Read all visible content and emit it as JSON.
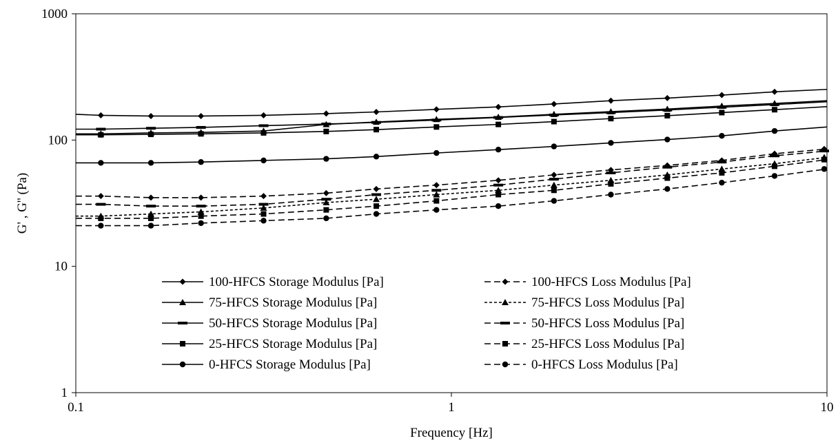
{
  "chart_data": {
    "type": "line",
    "title": "",
    "xlabel": "Frequency [Hz]",
    "ylabel": "G' , G'' (Pa)",
    "xscale": "log",
    "yscale": "log",
    "xlim": [
      0.1,
      10
    ],
    "ylim": [
      1,
      1000
    ],
    "xticks": [
      {
        "value": 0.1,
        "label": "0.1"
      },
      {
        "value": 1,
        "label": "1"
      },
      {
        "value": 10,
        "label": "10"
      }
    ],
    "yticks": [
      {
        "value": 1,
        "label": "1"
      },
      {
        "value": 10,
        "label": "10"
      },
      {
        "value": 100,
        "label": "100"
      },
      {
        "value": 1000,
        "label": "1000"
      }
    ],
    "grid": false,
    "legend_position": "inside-bottom-center",
    "x": [
      0.1,
      0.1166,
      0.1585,
      0.2154,
      0.3162,
      0.4642,
      0.631,
      0.9125,
      1.3335,
      1.8755,
      2.6585,
      3.7575,
      5.2475,
      7.2525,
      10
    ],
    "series": [
      {
        "name": "100-HFCS Storage Modulus [Pa]",
        "marker": "diamond",
        "dash": "solid",
        "values": [
          160,
          157,
          155,
          155,
          157,
          162,
          167,
          175,
          183,
          193,
          205,
          215,
          227,
          241,
          252
        ]
      },
      {
        "name": "75-HFCS Storage Modulus [Pa]",
        "marker": "triangle",
        "dash": "solid",
        "values": [
          112,
          112,
          114,
          115,
          118,
          133,
          139,
          146,
          152,
          160,
          168,
          176,
          186,
          195,
          205
        ]
      },
      {
        "name": "50-HFCS Storage Modulus [Pa]",
        "marker": "dash",
        "dash": "solid",
        "values": [
          122,
          122,
          124,
          126,
          130,
          134,
          138,
          144,
          151,
          158,
          165,
          173,
          182,
          191,
          201
        ]
      },
      {
        "name": "25-HFCS Storage Modulus [Pa]",
        "marker": "square",
        "dash": "solid",
        "values": [
          110,
          110,
          111,
          112,
          114,
          117,
          121,
          127,
          133,
          140,
          148,
          156,
          165,
          174,
          184
        ]
      },
      {
        "name": "0-HFCS Storage Modulus [Pa]",
        "marker": "circle",
        "dash": "solid",
        "values": [
          66,
          66,
          66,
          67,
          69,
          71,
          74,
          79,
          84,
          89,
          95,
          101,
          108,
          118,
          127
        ]
      },
      {
        "name": "100-HFCS Loss Modulus [Pa]",
        "marker": "diamond",
        "dash": "long-dash",
        "values": [
          36,
          36,
          35,
          35,
          36,
          38,
          41,
          44,
          48,
          53,
          58,
          63,
          69,
          78,
          85
        ]
      },
      {
        "name": "75-HFCS Loss Modulus [Pa]",
        "marker": "triangle",
        "dash": "short-dash",
        "values": [
          25,
          25,
          26,
          27,
          29,
          32,
          34,
          37,
          40,
          44,
          48,
          53,
          59,
          65,
          73
        ]
      },
      {
        "name": "50-HFCS Loss Modulus [Pa]",
        "marker": "dash",
        "dash": "long-dash",
        "values": [
          31,
          31,
          30,
          30,
          31,
          34,
          37,
          40,
          44,
          49,
          55,
          61,
          67,
          75,
          82
        ]
      },
      {
        "name": "25-HFCS Loss Modulus [Pa]",
        "marker": "square",
        "dash": "long-dash",
        "values": [
          24,
          24,
          24,
          25,
          26,
          28,
          30,
          33,
          37,
          40,
          45,
          50,
          55,
          62,
          70
        ]
      },
      {
        "name": "0-HFCS Loss Modulus [Pa]",
        "marker": "circle",
        "dash": "long-dash",
        "values": [
          21,
          21,
          21,
          22,
          23,
          24,
          26,
          28,
          30,
          33,
          37,
          41,
          46,
          52,
          59
        ]
      }
    ],
    "colors": {
      "line": "#000000",
      "background": "#ffffff"
    }
  }
}
